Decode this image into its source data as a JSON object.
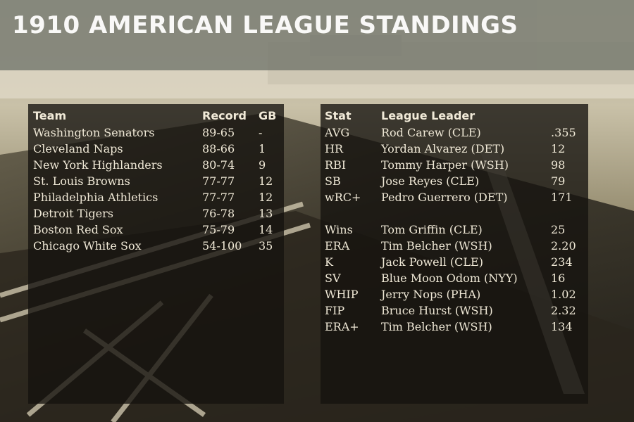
{
  "title": "1910 AMERICAN LEAGUE STANDINGS",
  "colors": {
    "title_bar": "#83857a",
    "panel": "#14120e",
    "text": "#efe8d6"
  },
  "standings": {
    "headers": {
      "team": "Team",
      "record": "Record",
      "gb": "GB"
    },
    "rows": [
      {
        "team": "Washington Senators",
        "record": "89-65",
        "gb": "-"
      },
      {
        "team": "Cleveland Naps",
        "record": "88-66",
        "gb": "1"
      },
      {
        "team": "New York Highlanders",
        "record": "80-74",
        "gb": "9"
      },
      {
        "team": "St. Louis Browns",
        "record": "77-77",
        "gb": "12"
      },
      {
        "team": "Philadelphia Athletics",
        "record": "77-77",
        "gb": "12"
      },
      {
        "team": "Detroit Tigers",
        "record": "76-78",
        "gb": "13"
      },
      {
        "team": "Boston Red Sox",
        "record": "75-79",
        "gb": "14"
      },
      {
        "team": "Chicago White Sox",
        "record": "54-100",
        "gb": "35"
      }
    ]
  },
  "leaders": {
    "headers": {
      "stat": "Stat",
      "leader": "League Leader"
    },
    "rows": [
      {
        "stat": "AVG",
        "leader": "Rod Carew (CLE)",
        "value": ".355"
      },
      {
        "stat": "HR",
        "leader": "Yordan Alvarez (DET)",
        "value": "12"
      },
      {
        "stat": "RBI",
        "leader": "Tommy Harper (WSH)",
        "value": "98"
      },
      {
        "stat": "SB",
        "leader": "Jose Reyes (CLE)",
        "value": "79"
      },
      {
        "stat": "wRC+",
        "leader": "Pedro Guerrero (DET)",
        "value": "171"
      },
      {
        "stat": "Wins",
        "leader": "Tom Griffin (CLE)",
        "value": "25"
      },
      {
        "stat": "ERA",
        "leader": "Tim Belcher (WSH)",
        "value": "2.20"
      },
      {
        "stat": "K",
        "leader": "Jack Powell (CLE)",
        "value": "234"
      },
      {
        "stat": "SV",
        "leader": "Blue Moon Odom (NYY)",
        "value": "16"
      },
      {
        "stat": "WHIP",
        "leader": "Jerry Nops (PHA)",
        "value": "1.02"
      },
      {
        "stat": "FIP",
        "leader": "Bruce Hurst (WSH)",
        "value": "2.32"
      },
      {
        "stat": "ERA+",
        "leader": "Tim Belcher (WSH)",
        "value": "134"
      }
    ]
  }
}
